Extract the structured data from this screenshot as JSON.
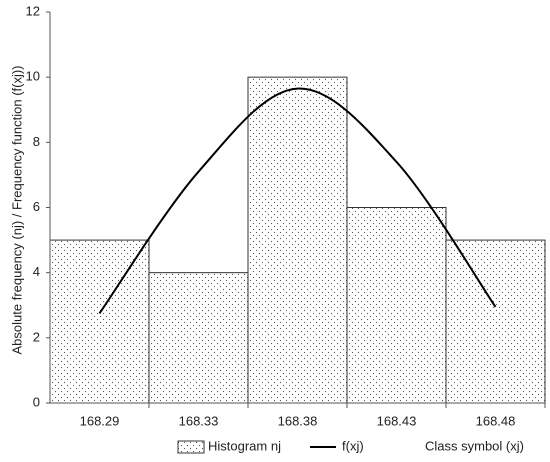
{
  "chart_data": {
    "type": "bar",
    "x_label": "Class symbol (xj)",
    "y_label": "Absolute frequency (nj) / Frequency function (f(xj))",
    "categories": [
      "168.29",
      "168.33",
      "168.38",
      "168.43",
      "168.48"
    ],
    "series": [
      {
        "name": "Histogram nj",
        "type": "bar",
        "color": "#333333",
        "values": [
          5,
          4,
          10,
          6,
          5
        ]
      },
      {
        "name": "f(xj)",
        "type": "line",
        "color": "#000000",
        "values": [
          2.75,
          7.1,
          9.65,
          7.4,
          2.95
        ]
      }
    ],
    "ylim": [
      0,
      12
    ],
    "yticks": [
      0,
      2,
      4,
      6,
      8,
      10,
      12
    ]
  }
}
